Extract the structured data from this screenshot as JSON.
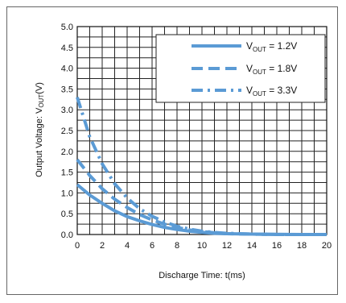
{
  "chart_data": {
    "type": "line",
    "title": "",
    "xlabel": "Discharge Time: t(ms)",
    "ylabel": "Output Voltage: V",
    "ylabel_sub": "OUT",
    "ylabel_suffix": "(V)",
    "xlim": [
      0,
      20
    ],
    "ylim": [
      0,
      5.0
    ],
    "x_ticks": [
      0,
      2,
      4,
      6,
      8,
      10,
      12,
      14,
      16,
      18,
      20
    ],
    "y_ticks": [
      "0.0",
      "0.5",
      "1.0",
      "1.5",
      "2.0",
      "2.5",
      "3.0",
      "3.5",
      "4.0",
      "4.5",
      "5.0"
    ],
    "grid": true,
    "legend_position": "top-right",
    "series_color": "#5b9bd5",
    "series": [
      {
        "name": "V_OUT = 1.2V",
        "legend_main": "V",
        "legend_sub": "OUT",
        "legend_value": " = 1.2V",
        "dash": "solid",
        "x": [
          0,
          1,
          2,
          3,
          4,
          5,
          6,
          7,
          8,
          9,
          10,
          11,
          12,
          14,
          16,
          18,
          20
        ],
        "y": [
          1.2,
          0.95,
          0.75,
          0.57,
          0.43,
          0.33,
          0.24,
          0.17,
          0.12,
          0.08,
          0.05,
          0.03,
          0.02,
          0.01,
          0.005,
          0.0,
          0.0
        ]
      },
      {
        "name": "V_OUT = 1.8V",
        "legend_main": "V",
        "legend_sub": "OUT",
        "legend_value": " = 1.8V",
        "dash": "dash",
        "x": [
          0,
          1,
          2,
          3,
          4,
          5,
          6,
          7,
          8,
          9,
          10,
          11,
          12,
          14,
          16,
          18,
          20
        ],
        "y": [
          1.8,
          1.42,
          1.1,
          0.85,
          0.65,
          0.48,
          0.35,
          0.25,
          0.17,
          0.11,
          0.07,
          0.04,
          0.02,
          0.01,
          0.0,
          0.0,
          0.0
        ]
      },
      {
        "name": "V_OUT = 3.3V",
        "legend_main": "V",
        "legend_sub": "OUT",
        "legend_value": " = 3.3V",
        "dash": "dashdot",
        "x": [
          0,
          1,
          2,
          3,
          4,
          5,
          6,
          7,
          8,
          9,
          10,
          11,
          12,
          14,
          16,
          18,
          20
        ],
        "y": [
          3.3,
          2.35,
          1.7,
          1.22,
          0.88,
          0.62,
          0.44,
          0.3,
          0.2,
          0.13,
          0.08,
          0.05,
          0.03,
          0.01,
          0.0,
          0.0,
          0.0
        ]
      }
    ]
  }
}
